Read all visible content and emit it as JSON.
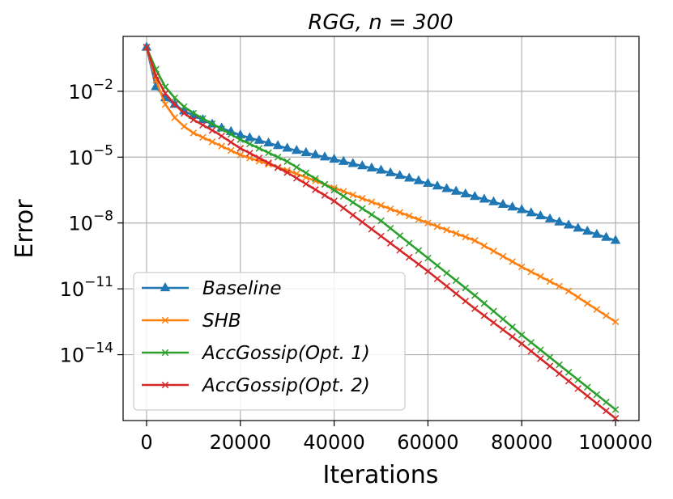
{
  "chart_data": {
    "type": "line",
    "title": "RGG,    n = 300",
    "xlabel": "Iterations",
    "ylabel": "Error",
    "yscale": "log",
    "xlim": [
      -5000,
      105000
    ],
    "ylim_exponent": [
      -17,
      0.5
    ],
    "x_ticks": [
      0,
      20000,
      40000,
      60000,
      80000,
      100000
    ],
    "x_tick_labels": [
      "0",
      "20000",
      "40000",
      "60000",
      "80000",
      "100000"
    ],
    "y_tick_exponents": [
      -2,
      -5,
      -8,
      -11,
      -14
    ],
    "y_tick_base": "10",
    "grid": true,
    "legend_position": "lower-left",
    "series": [
      {
        "name": "Baseline",
        "color": "#1f77b4",
        "marker": "triangle-up",
        "x": [
          0,
          2000,
          4000,
          6000,
          8000,
          10000,
          15000,
          20000,
          30000,
          40000,
          50000,
          60000,
          70000,
          80000,
          90000,
          100000
        ],
        "log10_y": [
          0,
          -1.8,
          -2.3,
          -2.6,
          -2.9,
          -3.1,
          -3.6,
          -4.0,
          -4.6,
          -5.1,
          -5.6,
          -6.2,
          -6.8,
          -7.4,
          -8.1,
          -8.8
        ]
      },
      {
        "name": "SHB",
        "color": "#ff7f0e",
        "marker": "x",
        "x": [
          0,
          2000,
          4000,
          6000,
          8000,
          10000,
          15000,
          20000,
          30000,
          40000,
          50000,
          60000,
          70000,
          80000,
          90000,
          100000
        ],
        "log10_y": [
          0,
          -1.5,
          -2.6,
          -3.2,
          -3.6,
          -3.9,
          -4.4,
          -4.9,
          -5.6,
          -6.4,
          -7.2,
          -8.0,
          -8.8,
          -10.0,
          -11.1,
          -12.5
        ]
      },
      {
        "name": "AccGossip(Opt. 1)",
        "color": "#2ca02c",
        "marker": "x",
        "x": [
          0,
          2000,
          4000,
          6000,
          8000,
          10000,
          15000,
          20000,
          30000,
          40000,
          50000,
          60000,
          70000,
          80000,
          90000,
          100000
        ],
        "log10_y": [
          0,
          -1.0,
          -1.8,
          -2.3,
          -2.7,
          -3.0,
          -3.6,
          -4.2,
          -5.2,
          -6.5,
          -7.9,
          -9.6,
          -11.3,
          -13.1,
          -14.8,
          -16.5
        ]
      },
      {
        "name": "AccGossip(Opt. 2)",
        "color": "#d62728",
        "marker": "x",
        "x": [
          0,
          2000,
          4000,
          6000,
          8000,
          10000,
          15000,
          20000,
          30000,
          40000,
          50000,
          60000,
          70000,
          80000,
          90000,
          100000
        ],
        "log10_y": [
          0,
          -1.3,
          -2.1,
          -2.6,
          -3.0,
          -3.3,
          -3.9,
          -4.6,
          -5.7,
          -7.0,
          -8.6,
          -10.2,
          -11.9,
          -13.5,
          -15.2,
          -16.9
        ]
      }
    ],
    "legend_entries": [
      "Baseline",
      "SHB",
      "AccGossip(Opt. 1)",
      "AccGossip(Opt. 2)"
    ]
  }
}
